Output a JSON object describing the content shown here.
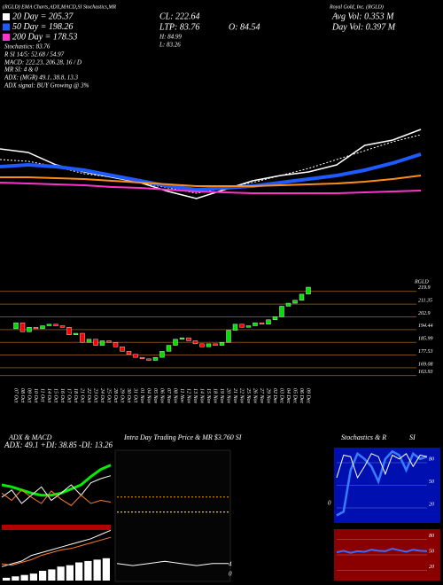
{
  "header": {
    "strip": "(RGLD) EMA Charts,ADX,MACD,SI Stochastics,MR",
    "company": "Royal Gold, Inc. (RGLD)",
    "stats": [
      "CL: 222.64",
      "LTP: 83.76",
      "O: 84.54",
      "H: 84.99",
      "L: 83.26",
      "Avg Vol: 0.353 M",
      "Day Vol: 0.397 M"
    ],
    "lines": [
      "Stochastics: 83.76",
      "R      SI 14/5: 52.68 / 54.97",
      "MACD: 222.23, 206.28, 16 / D",
      "MR      SI: 4  & 0",
      "ADX:        (MGR) 49.1, 38.8, 13.3",
      "ADX signal:         BUY Growing @ 3%"
    ]
  },
  "chart_data": [
    {
      "type": "candlestick",
      "title": "RGLD",
      "categories": [
        "07 Oct",
        "08 Oct",
        "09 Oct",
        "10 Oct",
        "11 Oct",
        "14 Oct",
        "15 Oct",
        "16 Oct",
        "17 Oct",
        "18 Oct",
        "21 Oct",
        "22 Oct",
        "23 Oct",
        "24 Oct",
        "25 Oct",
        "28 Oct",
        "29 Oct",
        "30 Oct",
        "31 Oct",
        "01 Nov",
        "04 Nov",
        "05 Nov",
        "06 Nov",
        "07 Nov",
        "08 Nov",
        "11 Nov",
        "12 Nov",
        "13 Nov",
        "14 Nov",
        "15 Nov",
        "18 Nov",
        "19 Nov",
        "20 Nov",
        "21 Nov",
        "22 Nov",
        "25 Nov",
        "26 Nov",
        "27 Nov",
        "29 Nov",
        "02 Dec",
        "03 Dec",
        "04 Dec",
        "05 Dec",
        "06 Dec",
        "09 Dec"
      ],
      "open": [
        195,
        199,
        193,
        196,
        195,
        197,
        198,
        197,
        196,
        191,
        192,
        186,
        188,
        184,
        187,
        186,
        183,
        180,
        178,
        176,
        175,
        174,
        176,
        180,
        184,
        188,
        189,
        187,
        185,
        183,
        185,
        184,
        186,
        194,
        198,
        196,
        197,
        199,
        198,
        201,
        203,
        210,
        212,
        214,
        218
      ],
      "close": [
        199,
        193,
        196,
        195,
        197,
        198,
        197,
        196,
        191,
        192,
        186,
        188,
        184,
        187,
        186,
        183,
        180,
        178,
        176,
        175,
        174,
        176,
        180,
        184,
        188,
        189,
        187,
        185,
        183,
        185,
        184,
        186,
        194,
        198,
        196,
        197,
        199,
        198,
        201,
        203,
        210,
        212,
        214,
        218,
        222.64
      ],
      "up_color": "#00e000",
      "down_color": "#ff0000",
      "grid_color": "#7a4a1c",
      "ylim": [
        159,
        225
      ],
      "yticks": [
        219.9,
        211.35,
        202.9,
        194.44,
        185.99,
        177.53,
        169.08,
        163.93
      ]
    },
    {
      "type": "line",
      "ylim": [
        160,
        270
      ],
      "series": [
        {
          "name": "20 Day = 205.37",
          "color": "#ffffff",
          "width": 1.5,
          "values": [
            232,
            228,
            214,
            206,
            200,
            194,
            184,
            176,
            186,
            196,
            202,
            206,
            214,
            236,
            242,
            254
          ]
        },
        {
          "color": "#ffffff",
          "width": 1,
          "dashed": true,
          "values": [
            220,
            218,
            212,
            204,
            200,
            194,
            188,
            182,
            188,
            194,
            202,
            210,
            220,
            230,
            240,
            248
          ]
        },
        {
          "name": "50 Day = 198.26",
          "color": "#1e5bff",
          "width": 4,
          "values": [
            212,
            214,
            212,
            208,
            202,
            196,
            190,
            186,
            188,
            190,
            194,
            198,
            202,
            208,
            216,
            226
          ]
        },
        {
          "color": "#ff8c1a",
          "width": 2,
          "values": [
            200,
            200,
            199,
            198,
            196,
            194,
            192,
            190,
            190,
            190,
            191,
            192,
            193,
            195,
            198,
            202
          ]
        },
        {
          "name": "200 Day = 178.53",
          "color": "#ff33cc",
          "width": 2,
          "values": [
            194,
            193,
            192,
            191,
            189,
            188,
            186,
            184,
            183,
            182,
            182,
            182,
            182,
            183,
            184,
            185
          ]
        }
      ]
    },
    {
      "type": "line",
      "title": "ADX & MACD",
      "subtitle": "ADX: 49.1 +DI: 38.85 -DI: 13.26",
      "ylim": [
        0,
        60
      ],
      "series": [
        {
          "color": "#00ee00",
          "width": 3,
          "values": [
            30,
            28,
            25,
            22,
            20,
            20,
            22,
            26,
            30,
            38,
            45,
            49.1
          ]
        },
        {
          "color": "#ffffff",
          "width": 1,
          "values": [
            18,
            25,
            12,
            20,
            28,
            15,
            22,
            30,
            20,
            32,
            36,
            38.85
          ]
        },
        {
          "color": "#ff7f2a",
          "width": 1,
          "values": [
            22,
            15,
            25,
            18,
            12,
            24,
            16,
            10,
            20,
            12,
            15,
            13.26
          ]
        }
      ]
    },
    {
      "type": "macd",
      "ylim": [
        0,
        40
      ],
      "histogram": [
        2,
        3,
        4,
        5,
        7,
        8,
        10,
        11,
        13,
        14,
        15,
        16
      ],
      "series": [
        {
          "color": "#ffffff",
          "width": 1,
          "values": [
            10,
            12,
            14,
            18,
            20,
            22,
            24,
            26,
            28,
            30,
            33,
            36
          ]
        },
        {
          "color": "#ff7f2a",
          "width": 1,
          "values": [
            12,
            11,
            13,
            15,
            18,
            20,
            22,
            23,
            25,
            27,
            29,
            31
          ]
        }
      ]
    },
    {
      "type": "line",
      "title": "Intra Day Trading Price & MR $3.760 SI",
      "annotations": [
        "4",
        "0"
      ],
      "ylim": [
        3.5,
        4.1
      ],
      "series": [
        {
          "color": "#ff9900",
          "width": 1,
          "dashed": true,
          "values": [
            3.89,
            3.89
          ]
        },
        {
          "color": "#ffff66",
          "width": 1,
          "dashed": true,
          "values": [
            3.82,
            3.82
          ]
        },
        {
          "color": "#ffffff",
          "width": 1,
          "values": [
            3.58,
            3.57,
            3.58,
            3.59,
            3.58,
            3.57,
            3.58,
            3.58
          ]
        }
      ]
    },
    {
      "type": "line",
      "title": "Stochastics & R",
      "annotations": [
        "0"
      ],
      "background": "#0010b0",
      "ylim": [
        0,
        100
      ],
      "yticks": [
        80,
        50,
        20
      ],
      "series": [
        {
          "color": "#3a7bff",
          "width": 2.5,
          "values": [
            10,
            15,
            70,
            92,
            85,
            75,
            55,
            85,
            95,
            90,
            70,
            92,
            85,
            88
          ]
        },
        {
          "color": "#ffffff",
          "width": 1,
          "values": [
            60,
            90,
            88,
            60,
            75,
            92,
            88,
            65,
            90,
            85,
            92,
            75,
            90,
            88
          ]
        }
      ]
    },
    {
      "type": "line",
      "title": "SI",
      "background": "#8a0000",
      "ylim": [
        0,
        100
      ],
      "yticks": [
        80,
        50,
        20
      ],
      "series": [
        {
          "color": "#3a6bff",
          "width": 2,
          "values": [
            55,
            58,
            54,
            57,
            56,
            60,
            58,
            57,
            62,
            59,
            56,
            60,
            58,
            57
          ]
        }
      ]
    }
  ]
}
